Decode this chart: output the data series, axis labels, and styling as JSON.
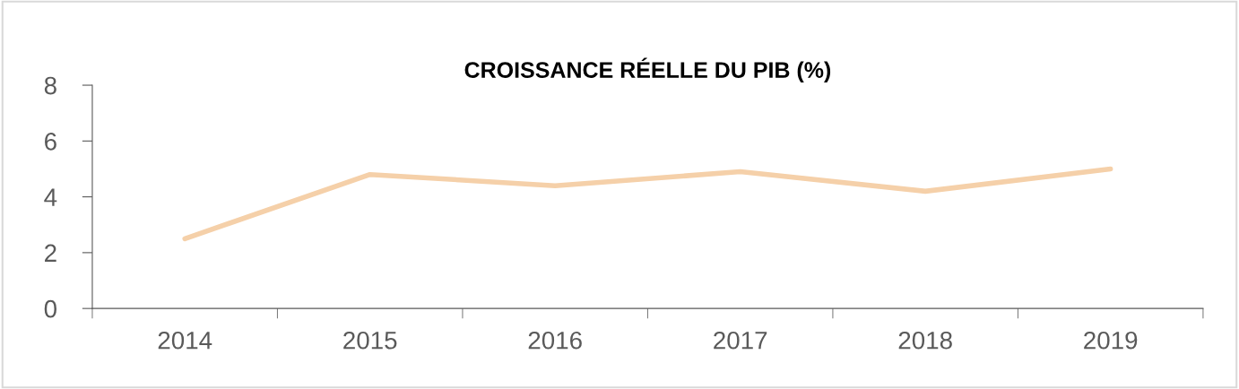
{
  "chart_data": {
    "type": "line",
    "title": "CROISSANCE RÉELLE DU PIB (%)",
    "categories": [
      "2014",
      "2015",
      "2016",
      "2017",
      "2018",
      "2019"
    ],
    "series": [
      {
        "color": "#f5d0a9",
        "values": [
          2.5,
          4.8,
          4.4,
          4.9,
          4.2,
          5.0
        ]
      }
    ],
    "ylim": [
      0,
      8
    ],
    "yticks": [
      0,
      2,
      4,
      6,
      8
    ],
    "marker": "none",
    "line_style": "solid"
  }
}
